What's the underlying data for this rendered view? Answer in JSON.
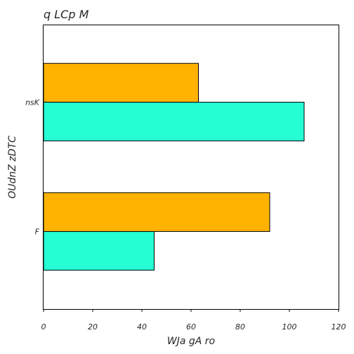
{
  "chart_data": {
    "type": "bar",
    "orientation": "horizontal",
    "title": "q LCp  M",
    "xlabel": "WJa gA ro",
    "ylabel": "OUdnZ zDTC",
    "categories": [
      "F",
      "nsK"
    ],
    "series": [
      {
        "values": [
          45,
          106
        ],
        "color": "#26ffd4"
      },
      {
        "values": [
          92,
          63
        ],
        "color": "#ffb300"
      }
    ],
    "xlim": [
      0,
      120
    ],
    "xticks": [
      0,
      20,
      40,
      60,
      80,
      100,
      120
    ],
    "grid": false,
    "legend": "none"
  }
}
